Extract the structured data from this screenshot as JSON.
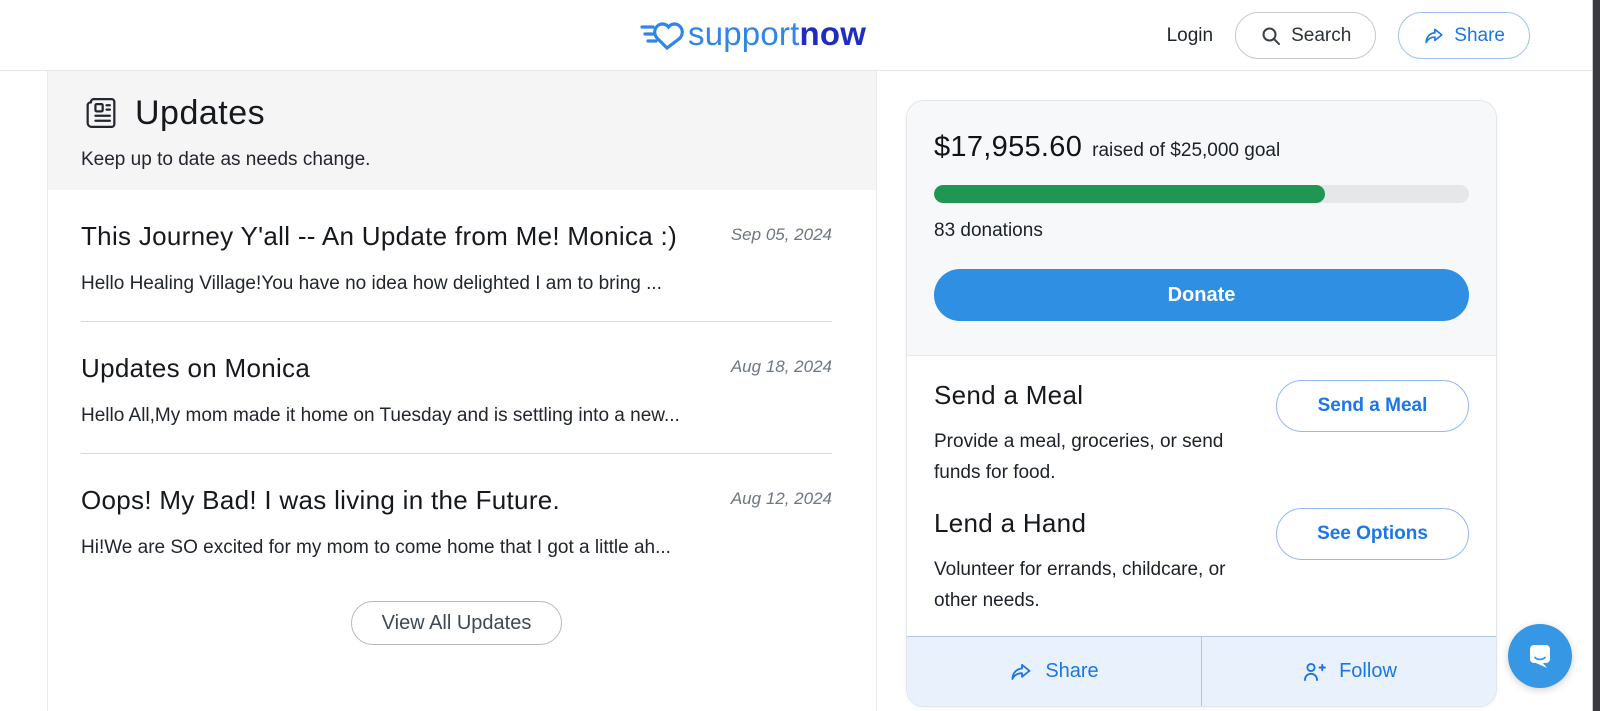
{
  "header": {
    "logo_light": "support",
    "logo_bold": "now",
    "login_label": "Login",
    "search_label": "Search",
    "share_label": "Share"
  },
  "updates": {
    "title": "Updates",
    "subtitle": "Keep up to date as needs change.",
    "items": [
      {
        "title": "This Journey Y'all -- An Update from Me! Monica :)",
        "date": "Sep 05, 2024",
        "excerpt": "Hello Healing Village!You have no idea how delighted I am to bring ..."
      },
      {
        "title": "Updates on Monica",
        "date": "Aug 18, 2024",
        "excerpt": "Hello All,My mom made it home on Tuesday and is settling into a new..."
      },
      {
        "title": "Oops! My Bad! I was living in the Future.",
        "date": "Aug 12, 2024",
        "excerpt": "Hi!We are SO excited for my mom to come home that I got a little ah..."
      }
    ],
    "view_all_label": "View All Updates"
  },
  "donation_card": {
    "raised_amount": "$17,955.60",
    "raised_suffix": "raised of $25,000 goal",
    "progress_percent": 73,
    "donations_count": "83 donations",
    "donate_label": "Donate",
    "offers": [
      {
        "title": "Send a Meal",
        "description": "Provide a meal, groceries, or send funds for food.",
        "button_label": "Send a Meal"
      },
      {
        "title": "Lend a Hand",
        "description": "Volunteer for errands, childcare, or other needs.",
        "button_label": "See Options"
      }
    ],
    "footer": {
      "share_label": "Share",
      "follow_label": "Follow"
    }
  },
  "colors": {
    "accent_blue": "#2e8fe3",
    "link_blue": "#1b76e8",
    "progress_green": "#1f9654",
    "logo_light_blue": "#2f86e8",
    "logo_dark_blue": "#1f2cc0",
    "footer_bar_bg": "#e9f2fc",
    "chat_fab_blue": "#3698e4"
  }
}
